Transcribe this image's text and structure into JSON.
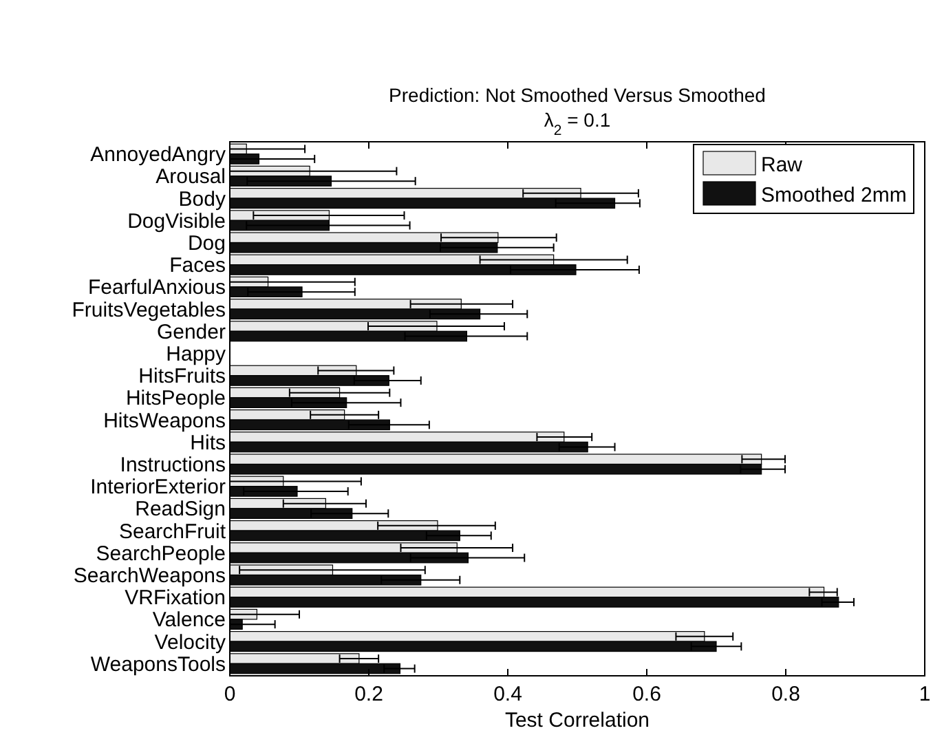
{
  "chart_data": {
    "type": "bar",
    "orientation": "horizontal",
    "title": "Prediction: Not Smoothed Versus Smoothed",
    "subtitle": "λ$_{2}$ = 0.1",
    "xlabel": "Test Correlation",
    "categories": [
      "AnnoyedAngry",
      "Arousal",
      "Body",
      "DogVisible",
      "Dog",
      "Faces",
      "FearfulAnxious",
      "FruitsVegetables",
      "Gender",
      "Happy",
      "HitsFruits",
      "HitsPeople",
      "HitsWeapons",
      "Hits",
      "Instructions",
      "InteriorExterior",
      "ReadSign",
      "SearchFruit",
      "SearchPeople",
      "SearchWeapons",
      "VRFixation",
      "Valence",
      "Velocity",
      "WeaponsTools"
    ],
    "series": [
      {
        "name": "Raw",
        "color": "#e8e8e8",
        "values": [
          0.024,
          0.115,
          0.505,
          0.143,
          0.386,
          0.466,
          0.055,
          0.333,
          0.298,
          0,
          0.182,
          0.158,
          0.165,
          0.481,
          0.765,
          0.077,
          0.138,
          0.299,
          0.327,
          0.148,
          0.855,
          0.039,
          0.683,
          0.186
        ],
        "errors": [
          [
            0,
            0.108
          ],
          [
            0,
            0.24
          ],
          [
            0.422,
            0.588
          ],
          [
            0.034,
            0.251
          ],
          [
            0.304,
            0.47
          ],
          [
            0.36,
            0.572
          ],
          [
            0,
            0.18
          ],
          [
            0.26,
            0.407
          ],
          [
            0.199,
            0.395
          ],
          null,
          [
            0.127,
            0.236
          ],
          [
            0.086,
            0.23
          ],
          [
            0.116,
            0.214
          ],
          [
            0.442,
            0.521
          ],
          [
            0.737,
            0.799
          ],
          [
            0,
            0.189
          ],
          [
            0.077,
            0.196
          ],
          [
            0.213,
            0.382
          ],
          [
            0.246,
            0.407
          ],
          [
            0.014,
            0.281
          ],
          [
            0.834,
            0.874
          ],
          [
            0,
            0.1
          ],
          [
            0.642,
            0.724
          ],
          [
            0.158,
            0.214
          ]
        ]
      },
      {
        "name": "Smoothed 2mm",
        "color": "#111111",
        "values": [
          0.042,
          0.146,
          0.554,
          0.143,
          0.385,
          0.498,
          0.104,
          0.36,
          0.341,
          0,
          0.229,
          0.168,
          0.23,
          0.515,
          0.765,
          0.097,
          0.176,
          0.331,
          0.343,
          0.275,
          0.876,
          0.018,
          0.7,
          0.245
        ],
        "errors": [
          [
            0,
            0.122
          ],
          [
            0.025,
            0.267
          ],
          [
            0.469,
            0.59
          ],
          [
            0.024,
            0.259
          ],
          [
            0.303,
            0.466
          ],
          [
            0.404,
            0.589
          ],
          [
            0.026,
            0.18
          ],
          [
            0.288,
            0.428
          ],
          [
            0.252,
            0.428
          ],
          null,
          [
            0.179,
            0.275
          ],
          [
            0.089,
            0.246
          ],
          [
            0.171,
            0.287
          ],
          [
            0.474,
            0.554
          ],
          [
            0.735,
            0.799
          ],
          [
            0.02,
            0.17
          ],
          [
            0.117,
            0.228
          ],
          [
            0.283,
            0.376
          ],
          [
            0.26,
            0.424
          ],
          [
            0.218,
            0.331
          ],
          [
            0.852,
            0.898
          ],
          [
            0,
            0.065
          ],
          [
            0.664,
            0.736
          ],
          [
            0.222,
            0.266
          ]
        ]
      }
    ],
    "xlim": [
      0,
      1
    ],
    "xticks": [
      0,
      0.2,
      0.4,
      0.6,
      0.8,
      1
    ],
    "legend": "top right"
  }
}
